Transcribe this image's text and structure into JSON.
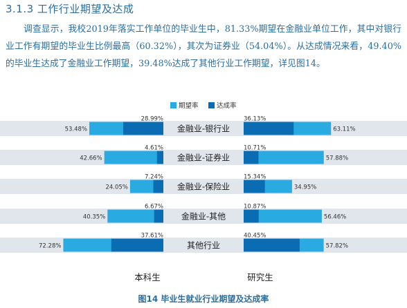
{
  "section_title": "3.1.3 工作行业期望及达成",
  "paragraph": "调查显示，我校2019年落实工作单位的毕业生中，81.33%期望在金融业单位工作，其中对银行业工作有期望的毕业生比例最高（60.32%），其次为证券业（54.04%）。从达成情况来看，49.40%的毕业生达成了金融业工作期望，39.48%达成了其他行业工作期望，详见图14。",
  "caption": "图14 毕业生就业行业期望及达成率",
  "colors": {
    "expect": "#29abe2",
    "achieve": "#0a6db3",
    "band": "#e1e5ec"
  },
  "chart_data": {
    "type": "bar",
    "legend": [
      "期望率",
      "达成率"
    ],
    "legend_position": "top",
    "categories": [
      "金融业-银行业",
      "金融业-证券业",
      "金融业-保险业",
      "金融业-其他",
      "其他行业"
    ],
    "groups": [
      {
        "label": "本科生",
        "series": [
          {
            "name": "期望率",
            "values": [
              53.48,
              42.66,
              24.05,
              40.35,
              72.28
            ]
          },
          {
            "name": "达成率",
            "values": [
              28.99,
              4.61,
              7.24,
              6.67,
              37.61
            ]
          }
        ]
      },
      {
        "label": "研究生",
        "series": [
          {
            "name": "期望率",
            "values": [
              63.11,
              57.88,
              34.95,
              56.46,
              57.82
            ]
          },
          {
            "name": "达成率",
            "values": [
              36.13,
              10.71,
              15.34,
              10.87,
              40.45
            ]
          }
        ]
      }
    ]
  }
}
